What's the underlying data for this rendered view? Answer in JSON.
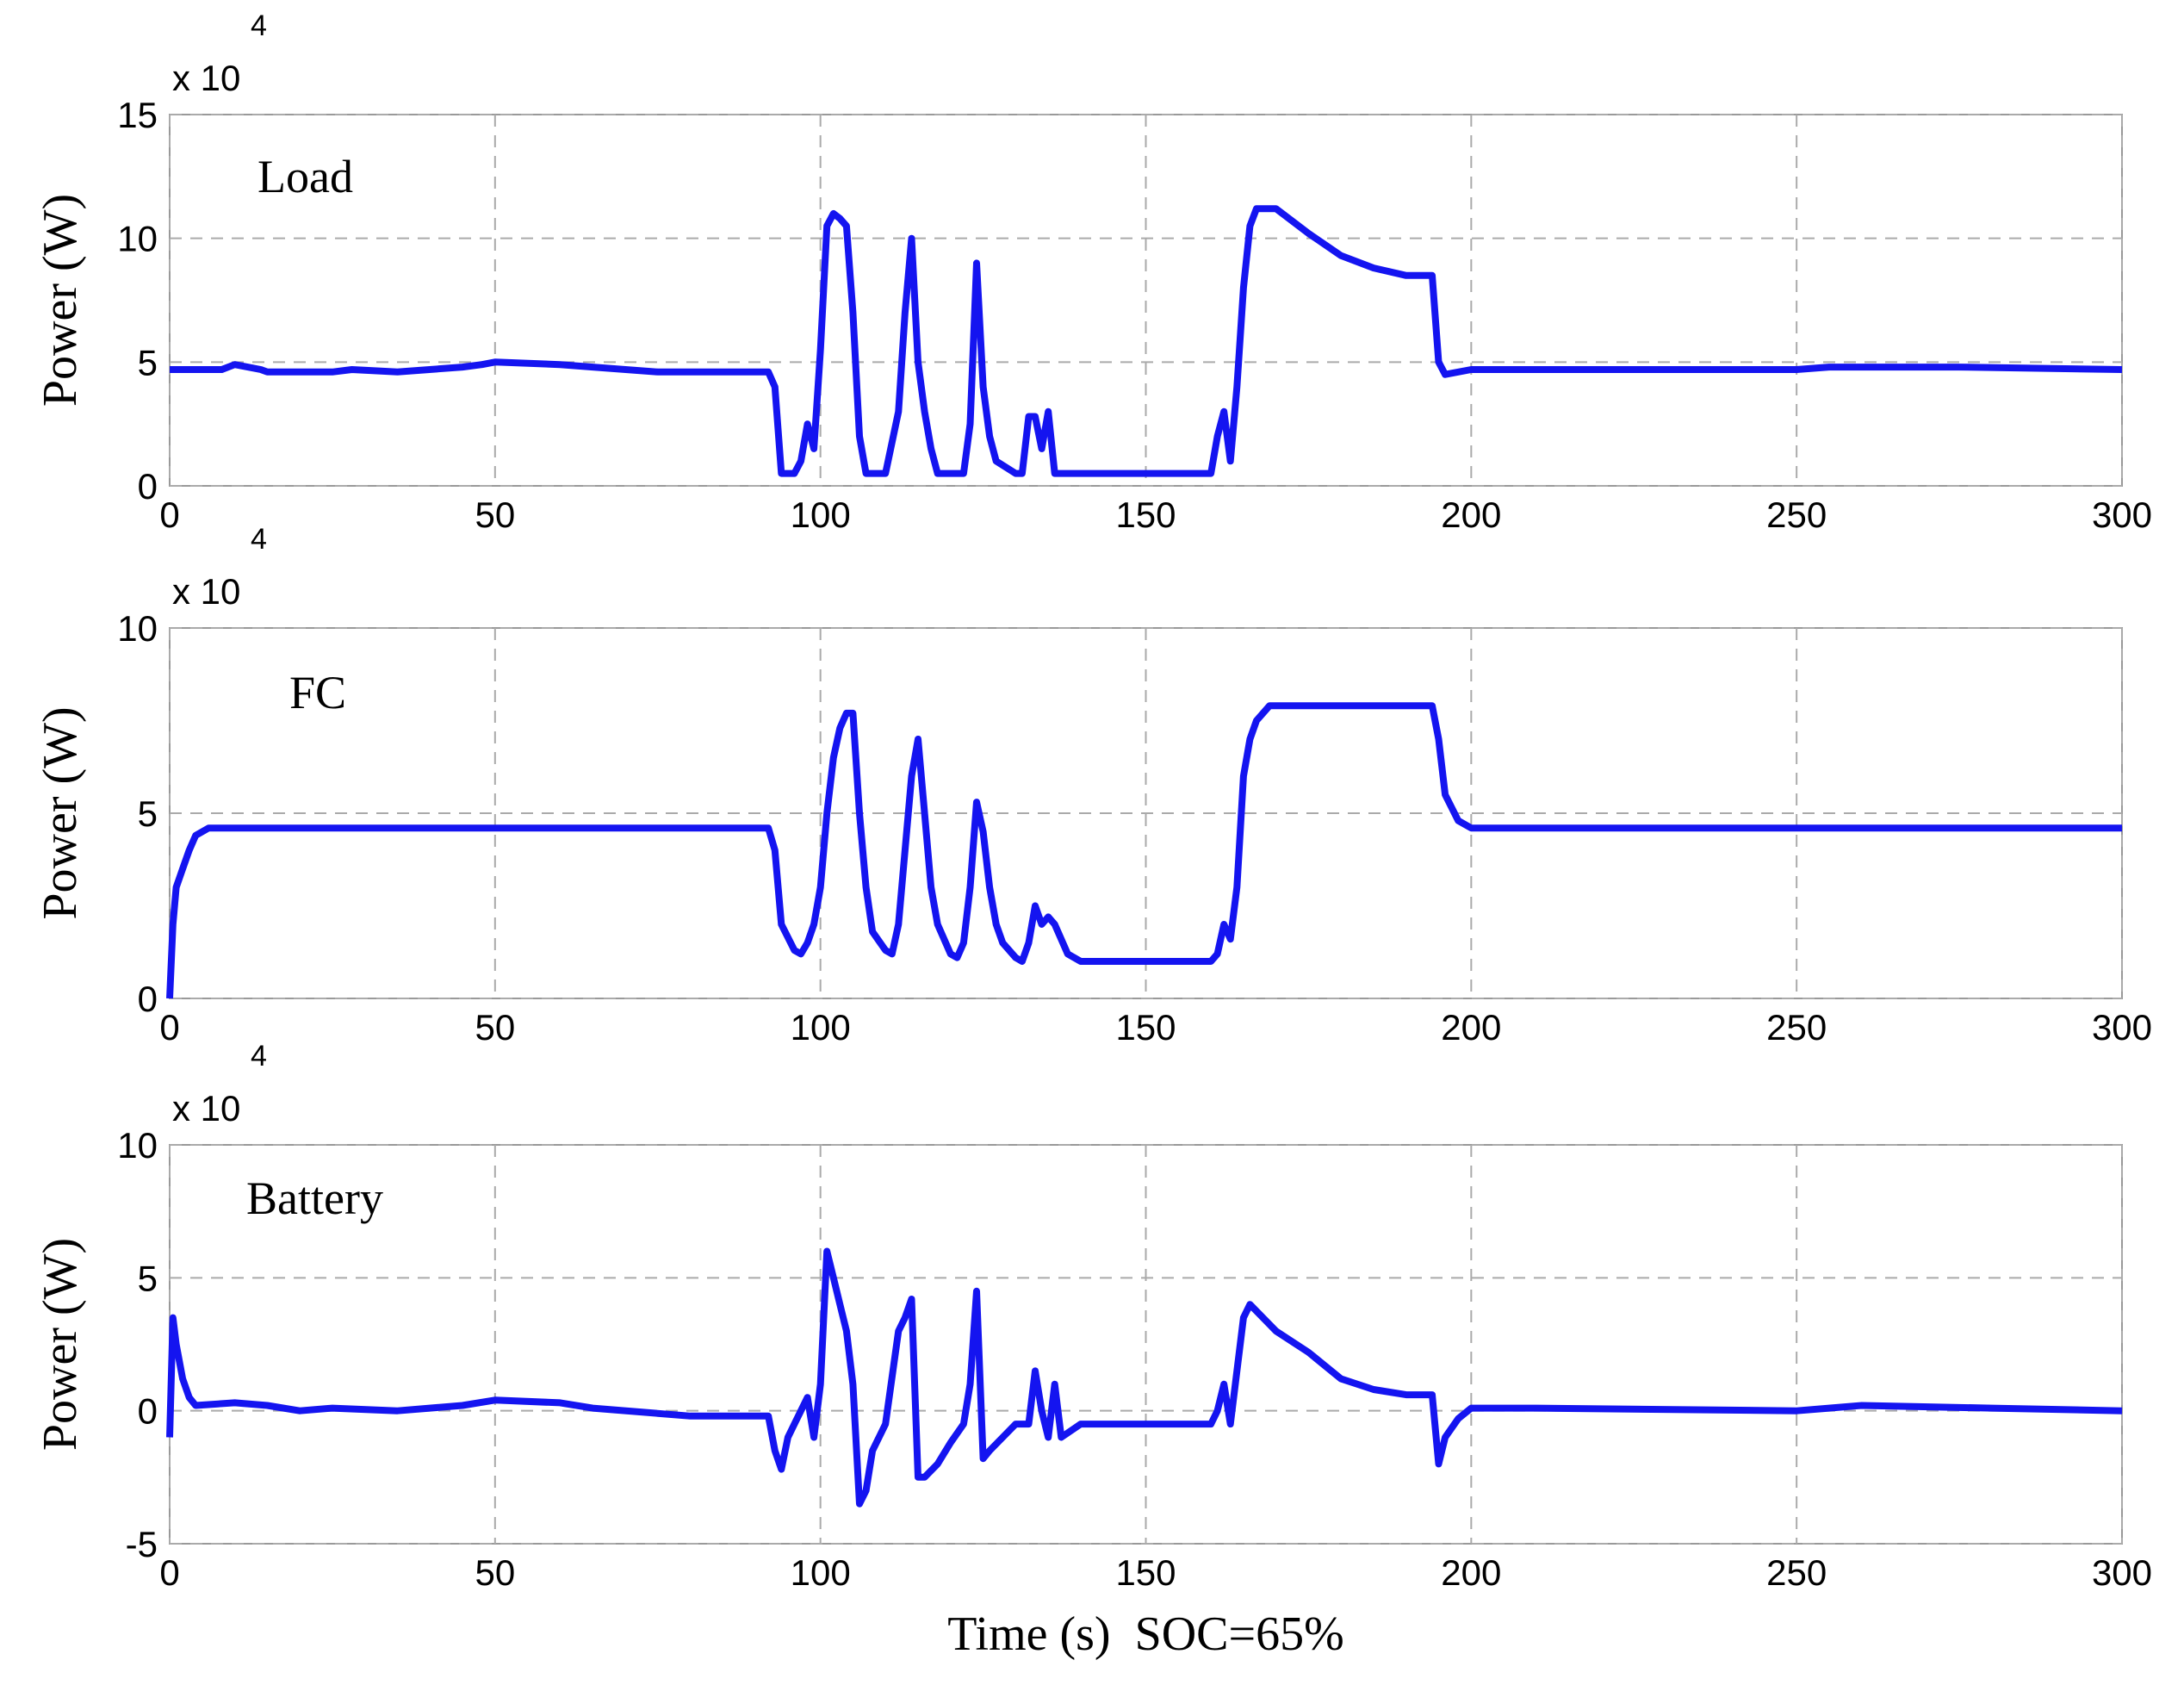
{
  "chart_data": [
    {
      "type": "line",
      "annotation": "Load",
      "ylabel": "Power (W)",
      "y_multiplier": "x 10",
      "y_exponent": "4",
      "color": "#1414f0",
      "grid": true,
      "xlim": [
        0,
        300
      ],
      "xticks": [
        0,
        50,
        100,
        150,
        200,
        250,
        300
      ],
      "ylim": [
        0,
        15
      ],
      "yticks": [
        0,
        5,
        10,
        15
      ],
      "x": [
        0,
        8,
        10,
        14,
        15,
        25,
        28,
        35,
        45,
        48,
        50,
        60,
        65,
        75,
        80,
        92,
        93,
        94,
        96,
        97,
        98,
        99,
        100,
        101,
        102,
        103,
        104,
        105,
        106,
        107,
        110,
        112,
        113,
        114,
        115,
        116,
        117,
        118,
        122,
        123,
        124,
        125,
        126,
        127,
        130,
        131,
        132,
        133,
        134,
        135,
        136,
        140,
        150,
        160,
        161,
        162,
        163,
        164,
        165,
        166,
        167,
        170,
        175,
        180,
        185,
        190,
        194,
        195,
        196,
        200,
        250,
        255,
        275,
        300
      ],
      "values": [
        4.7,
        4.7,
        4.9,
        4.7,
        4.6,
        4.6,
        4.7,
        4.6,
        4.8,
        4.9,
        5.0,
        4.9,
        4.8,
        4.6,
        4.6,
        4.6,
        4.0,
        0.5,
        0.5,
        1.0,
        2.5,
        1.5,
        5.5,
        10.5,
        11.0,
        10.8,
        10.5,
        7,
        2,
        0.5,
        0.5,
        3,
        7,
        10,
        5,
        3,
        1.5,
        0.5,
        0.5,
        2.5,
        9,
        4,
        2,
        1,
        0.5,
        0.5,
        2.8,
        2.8,
        1.5,
        3,
        0.5,
        0.5,
        0.5,
        0.5,
        2,
        3,
        1,
        4,
        8,
        10.5,
        11.2,
        11.2,
        10.2,
        9.3,
        8.8,
        8.5,
        8.5,
        5,
        4.5,
        4.7,
        4.7,
        4.8,
        4.8,
        4.7
      ]
    },
    {
      "type": "line",
      "annotation": "FC",
      "ylabel": "Power (W)",
      "y_multiplier": "x 10",
      "y_exponent": "4",
      "color": "#1414f0",
      "grid": true,
      "xlim": [
        0,
        300
      ],
      "xticks": [
        0,
        50,
        100,
        150,
        200,
        250,
        300
      ],
      "ylim": [
        0,
        10
      ],
      "yticks": [
        0,
        5,
        10
      ],
      "x": [
        0,
        0.5,
        1,
        2,
        3,
        4,
        6,
        92,
        93,
        94,
        96,
        97,
        98,
        99,
        100,
        101,
        102,
        103,
        104,
        105,
        106,
        107,
        108,
        110,
        111,
        112,
        113,
        114,
        115,
        116,
        117,
        118,
        120,
        121,
        122,
        123,
        124,
        125,
        126,
        127,
        128,
        130,
        131,
        132,
        133,
        134,
        135,
        136,
        138,
        140,
        150,
        160,
        161,
        162,
        163,
        164,
        165,
        166,
        167,
        169,
        194,
        195,
        196,
        198,
        200,
        300
      ],
      "values": [
        0,
        2,
        3,
        3.5,
        4,
        4.4,
        4.6,
        4.6,
        4,
        2,
        1.3,
        1.2,
        1.5,
        2,
        3,
        5,
        6.5,
        7.3,
        7.7,
        7.7,
        5,
        3,
        1.8,
        1.3,
        1.2,
        2,
        4,
        6,
        7,
        5,
        3,
        2,
        1.2,
        1.1,
        1.5,
        3,
        5.3,
        4.5,
        3,
        2,
        1.5,
        1.1,
        1.0,
        1.5,
        2.5,
        2,
        2.2,
        2,
        1.2,
        1,
        1,
        1,
        1.2,
        2,
        1.6,
        3,
        6,
        7,
        7.5,
        7.9,
        7.9,
        7,
        5.5,
        4.8,
        4.6,
        4.6
      ]
    },
    {
      "type": "line",
      "annotation": "Battery",
      "ylabel": "Power (W)",
      "y_multiplier": "x 10",
      "y_exponent": "4",
      "xlabel": "Time (s)  SOC=65%",
      "color": "#1414f0",
      "grid": true,
      "xlim": [
        0,
        300
      ],
      "xticks": [
        0,
        50,
        100,
        150,
        200,
        250,
        300
      ],
      "ylim": [
        -5,
        10
      ],
      "yticks": [
        -5,
        0,
        5,
        10
      ],
      "x": [
        0,
        0.5,
        1,
        2,
        3,
        4,
        10,
        15,
        20,
        25,
        35,
        45,
        50,
        60,
        65,
        80,
        92,
        93,
        94,
        95,
        96,
        98,
        99,
        100,
        101,
        102,
        103,
        104,
        105,
        106,
        107,
        108,
        110,
        112,
        113,
        114,
        115,
        116,
        118,
        120,
        122,
        123,
        124,
        125,
        126,
        128,
        130,
        132,
        133,
        134,
        135,
        136,
        137,
        140,
        150,
        160,
        161,
        162,
        163,
        164,
        165,
        166,
        170,
        175,
        180,
        185,
        190,
        194,
        195,
        196,
        198,
        200,
        210,
        250,
        255,
        260,
        280,
        300
      ],
      "values": [
        -1,
        3.5,
        2.5,
        1.2,
        0.5,
        0.2,
        0.3,
        0.2,
        0,
        0.1,
        0,
        0.2,
        0.4,
        0.3,
        0.1,
        -0.2,
        -0.2,
        -1.5,
        -2.2,
        -1,
        -0.5,
        0.5,
        -1,
        1,
        6,
        5,
        4,
        3,
        1,
        -3.5,
        -3,
        -1.5,
        -0.5,
        3,
        3.5,
        4.2,
        -2.5,
        -2.5,
        -2,
        -1.2,
        -0.5,
        1,
        4.5,
        -1.8,
        -1.5,
        -1,
        -0.5,
        -0.5,
        1.5,
        0,
        -1,
        1,
        -1,
        -0.5,
        -0.5,
        -0.5,
        0,
        1,
        -0.5,
        1.5,
        3.5,
        4,
        3,
        2.2,
        1.2,
        0.8,
        0.6,
        0.6,
        -2,
        -1,
        -0.3,
        0.1,
        0.1,
        0,
        0.1,
        0.2,
        0.1,
        0
      ]
    }
  ]
}
